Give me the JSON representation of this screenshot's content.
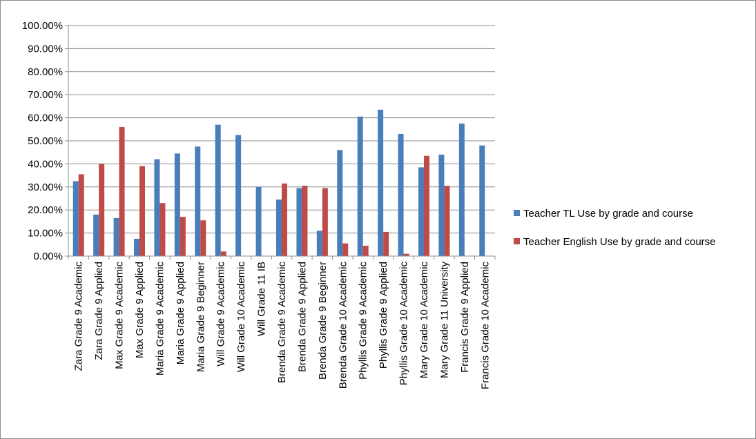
{
  "chart_data": {
    "type": "bar",
    "title": "",
    "xlabel": "",
    "ylabel": "",
    "ylim": [
      0,
      1
    ],
    "y_ticks": [
      "0.00%",
      "10.00%",
      "20.00%",
      "30.00%",
      "40.00%",
      "50.00%",
      "60.00%",
      "70.00%",
      "80.00%",
      "90.00%",
      "100.00%"
    ],
    "grid": true,
    "legend_position": "right",
    "categories": [
      "Zara Grade 9 Academic",
      "Zara Grade 9 Applied",
      "Max Grade 9 Academic",
      "Max Grade 9 Applied",
      "Maria Grade 9 Academic",
      "Maria Grade 9 Applied",
      "Maria Grade 9 Beginner",
      "Will Grade 9 Academic",
      "Will Grade 10 Academic",
      "Will Grade 11 IB",
      "Brenda Grade 9 Academic",
      "Brenda Grade 9 Applied",
      "Brenda Grade 9 Beginner",
      "Brenda Grade 10 Academic",
      "Phyllis Grade 9 Academic",
      "Phyllis Grade 9 Applied",
      "Phyllis Grade 10 Academic",
      "Mary Grade 10 Academic",
      "Mary Grade 11 University",
      "Francis Grade 9 Applied",
      "Francis Grade 10 Academic"
    ],
    "series": [
      {
        "name": "Teacher TL Use by grade and course",
        "color": "#4a7ebb",
        "values": [
          0.325,
          0.18,
          0.165,
          0.075,
          0.42,
          0.445,
          0.475,
          0.57,
          0.525,
          0.3,
          0.245,
          0.295,
          0.11,
          0.46,
          0.605,
          0.635,
          0.53,
          0.385,
          0.44,
          0.575,
          0.48
        ]
      },
      {
        "name": "Teacher English Use by grade and course",
        "color": "#be4b48",
        "values": [
          0.355,
          0.4,
          0.56,
          0.39,
          0.23,
          0.17,
          0.155,
          0.02,
          0.0,
          0.0,
          0.315,
          0.305,
          0.295,
          0.055,
          0.045,
          0.105,
          0.01,
          0.435,
          0.305,
          0.0,
          0.0
        ]
      }
    ]
  }
}
